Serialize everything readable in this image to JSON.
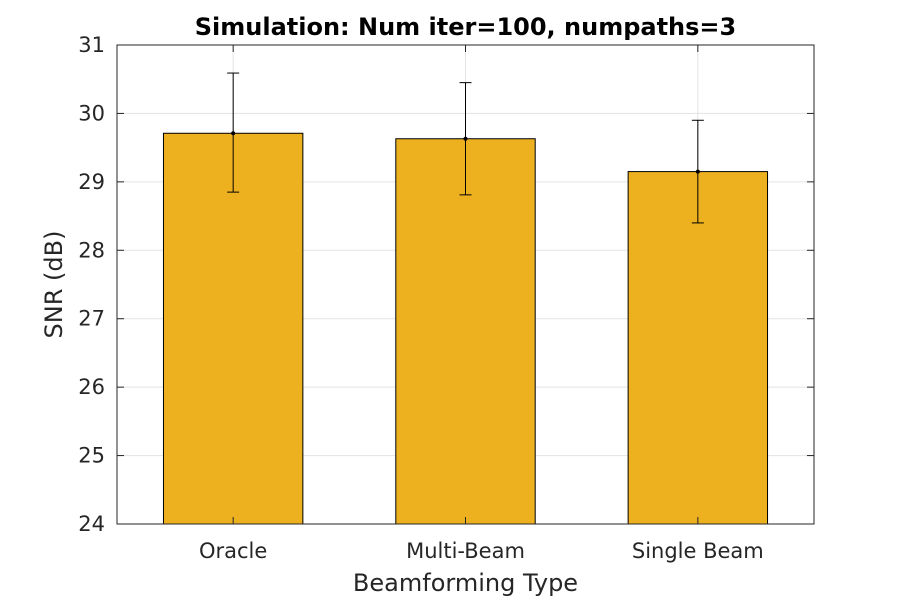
{
  "chart_data": {
    "type": "bar",
    "title": "Simulation: Num iter=100, numpaths=3",
    "xlabel": "Beamforming Type",
    "ylabel": "SNR (dB)",
    "categories": [
      "Oracle",
      "Multi-Beam",
      "Single Beam"
    ],
    "values": [
      29.71,
      29.63,
      29.15
    ],
    "error_low": [
      28.85,
      28.81,
      28.4
    ],
    "error_high": [
      30.59,
      30.45,
      29.9
    ],
    "ylim": [
      24,
      31
    ],
    "yticks": [
      24,
      25,
      26,
      27,
      28,
      29,
      30,
      31
    ],
    "grid": true,
    "bar_color": "#EDB120",
    "legend": null
  }
}
